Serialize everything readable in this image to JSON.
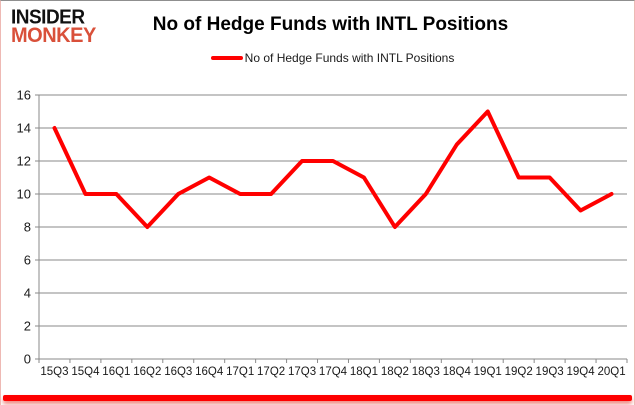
{
  "logo": {
    "line1": "INSIDER",
    "line2": "MONKEY"
  },
  "header": {
    "title": "No of Hedge Funds with INTL Positions"
  },
  "legend": {
    "label": "No of Hedge Funds with INTL Positions",
    "marker_color": "#ff0000"
  },
  "colors": {
    "series_red": "#ff0000",
    "logo_red": "#d9503a",
    "gridline": "#8a8a8a",
    "axis": "#8a8a8a",
    "label": "#1a1a1a",
    "bottom_bar": "#fe0000"
  },
  "chart_data": {
    "type": "line",
    "title": "No of Hedge Funds with INTL Positions",
    "categories": [
      "15Q3",
      "15Q4",
      "16Q1",
      "16Q2",
      "16Q3",
      "16Q4",
      "17Q1",
      "17Q2",
      "17Q3",
      "17Q4",
      "18Q1",
      "18Q2",
      "18Q3",
      "18Q4",
      "19Q1",
      "19Q2",
      "19Q3",
      "19Q4",
      "20Q1"
    ],
    "series": [
      {
        "name": "No of Hedge Funds with INTL Positions",
        "color": "#ff0000",
        "values": [
          14,
          10,
          10,
          8,
          10,
          11,
          10,
          10,
          12,
          12,
          11,
          8,
          10,
          13,
          15,
          11,
          11,
          9,
          10
        ]
      }
    ],
    "xlabel": "",
    "ylabel": "",
    "ylim": [
      0,
      16
    ],
    "ytick_step": 2,
    "grid": true,
    "legend_position": "top"
  }
}
